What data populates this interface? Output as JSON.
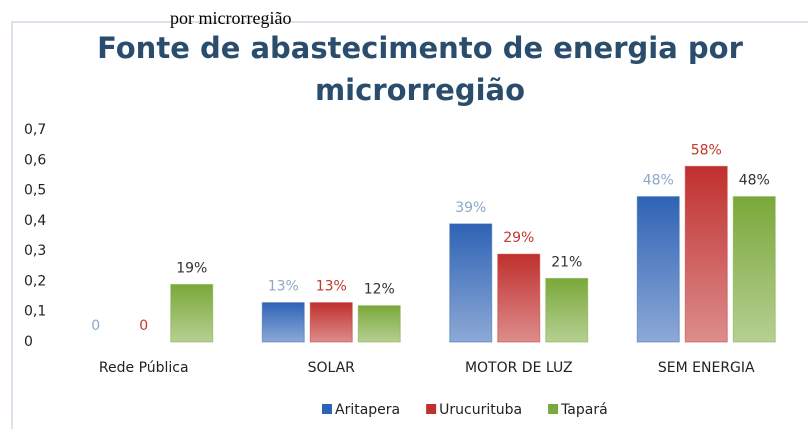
{
  "caption": "por microrregião",
  "chart_data": {
    "type": "bar",
    "title": "Fonte de abastecimento de energia por",
    "title_line2": "microrregião",
    "categories": [
      "Rede Pública",
      "SOLAR",
      "MOTOR DE LUZ",
      "SEM ENERGIA"
    ],
    "series": [
      {
        "name": "Aritapera",
        "color": "#2f63b5",
        "label_color": "#8fa8c8",
        "values": [
          0,
          0.13,
          0.39,
          0.48
        ],
        "value_labels": [
          "0",
          "13%",
          "39%",
          "48%"
        ]
      },
      {
        "name": "Urucurituba",
        "color": "#c0302e",
        "label_color": "#c0392b",
        "values": [
          0,
          0.13,
          0.29,
          0.58
        ],
        "value_labels": [
          "0",
          "13%",
          "29%",
          "58%"
        ]
      },
      {
        "name": "Tapará",
        "color": "#7aa83a",
        "label_color": "#333333",
        "values": [
          0.19,
          0.12,
          0.21,
          0.48
        ],
        "value_labels": [
          "19%",
          "12%",
          "21%",
          "48%"
        ]
      }
    ],
    "ylim": [
      0,
      0.7
    ],
    "yticks": [
      0,
      {
        "value": 0.1,
        "label": "0,1"
      },
      {
        "value": 0.2,
        "label": "0,2"
      },
      {
        "value": 0.3,
        "label": "0,3"
      },
      {
        "value": 0.4,
        "label": "0,4"
      },
      {
        "value": 0.5,
        "label": "0,5"
      },
      {
        "value": 0.6,
        "label": "0,6"
      },
      {
        "value": 0.7,
        "label": "0,7"
      }
    ],
    "grid": false,
    "legend": "bottom"
  }
}
